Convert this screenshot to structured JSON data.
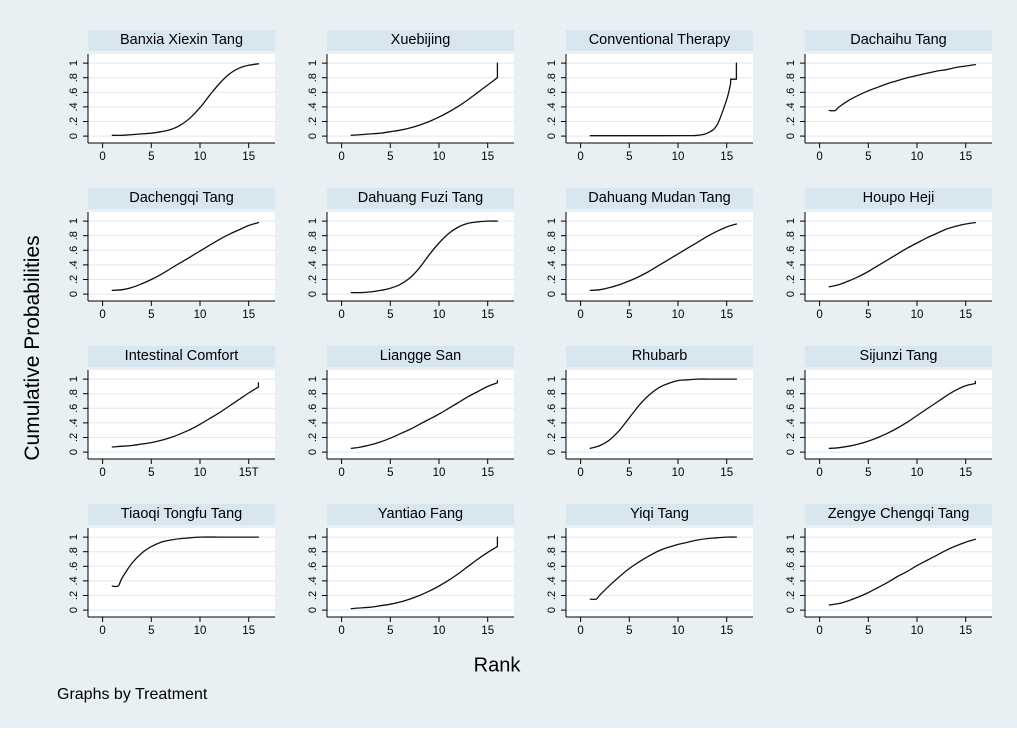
{
  "figure": {
    "ylabel": "Cumulative Probabilities",
    "xlabel": "Rank",
    "footnote": "Graphs by Treatment"
  },
  "colors": {
    "background": "#e8f0f4",
    "title_band": "#d8e6ef",
    "plot_background": "#ffffff",
    "gridline": "#dfe9f1",
    "axis": "#000000",
    "curve": "#111111"
  },
  "axes": {
    "y_tick_labels": [
      "0",
      ".2",
      ".4",
      ".6",
      ".8",
      "1"
    ],
    "y_tick_values": [
      0,
      0.2,
      0.4,
      0.6,
      0.8,
      1
    ],
    "x_tick_labels_default": [
      "0",
      "5",
      "10",
      "15"
    ],
    "x_tick_values": [
      0,
      5,
      10,
      15
    ],
    "x_range": [
      -1.5,
      17.7
    ],
    "y_range": [
      -0.095,
      1.125
    ],
    "grid": "horizontal only"
  },
  "chart_data": {
    "type": "line",
    "layout": "4x4 small multiples (Stata graph by Treatment)",
    "x_variable": "Rank (1-16)",
    "y_variable": "Cumulative probability",
    "panels": [
      {
        "title": "Banxia Xiexin Tang",
        "points": [
          [
            1,
            0.01
          ],
          [
            2,
            0.01
          ],
          [
            3,
            0.02
          ],
          [
            4,
            0.03
          ],
          [
            5,
            0.04
          ],
          [
            6,
            0.06
          ],
          [
            7,
            0.09
          ],
          [
            8,
            0.15
          ],
          [
            9,
            0.25
          ],
          [
            10,
            0.39
          ],
          [
            11,
            0.56
          ],
          [
            12,
            0.72
          ],
          [
            13,
            0.85
          ],
          [
            14,
            0.93
          ],
          [
            15,
            0.97
          ],
          [
            16,
            0.99
          ]
        ]
      },
      {
        "title": "Xuebijing",
        "points": [
          [
            1,
            0.01
          ],
          [
            2,
            0.02
          ],
          [
            3,
            0.03
          ],
          [
            4,
            0.04
          ],
          [
            5,
            0.06
          ],
          [
            6,
            0.08
          ],
          [
            7,
            0.11
          ],
          [
            8,
            0.15
          ],
          [
            9,
            0.2
          ],
          [
            10,
            0.26
          ],
          [
            11,
            0.33
          ],
          [
            12,
            0.41
          ],
          [
            13,
            0.5
          ],
          [
            14,
            0.6
          ],
          [
            15,
            0.7
          ],
          [
            16,
            0.8
          ],
          [
            16,
            1
          ]
        ]
      },
      {
        "title": "Conventional Therapy",
        "points": [
          [
            1,
            0.005
          ],
          [
            4,
            0.005
          ],
          [
            8,
            0.005
          ],
          [
            11,
            0.006
          ],
          [
            12,
            0.01
          ],
          [
            13,
            0.04
          ],
          [
            14,
            0.15
          ],
          [
            15,
            0.5
          ],
          [
            15.4,
            0.72
          ],
          [
            15.4,
            0.78
          ],
          [
            16,
            0.78
          ],
          [
            16,
            1
          ]
        ]
      },
      {
        "title": "Dachaihu Tang",
        "points": [
          [
            1,
            0.35
          ],
          [
            1.6,
            0.35
          ],
          [
            2,
            0.4
          ],
          [
            3,
            0.49
          ],
          [
            4,
            0.56
          ],
          [
            5,
            0.62
          ],
          [
            6,
            0.67
          ],
          [
            7,
            0.72
          ],
          [
            8,
            0.76
          ],
          [
            9,
            0.8
          ],
          [
            10,
            0.83
          ],
          [
            11,
            0.86
          ],
          [
            12,
            0.89
          ],
          [
            13,
            0.91
          ],
          [
            14,
            0.94
          ],
          [
            15,
            0.96
          ],
          [
            16,
            0.98
          ]
        ]
      },
      {
        "title": "Dachengqi Tang",
        "points": [
          [
            1,
            0.05
          ],
          [
            2,
            0.06
          ],
          [
            3,
            0.09
          ],
          [
            4,
            0.14
          ],
          [
            5,
            0.2
          ],
          [
            6,
            0.27
          ],
          [
            7,
            0.35
          ],
          [
            8,
            0.43
          ],
          [
            9,
            0.51
          ],
          [
            10,
            0.59
          ],
          [
            11,
            0.67
          ],
          [
            12,
            0.75
          ],
          [
            13,
            0.82
          ],
          [
            14,
            0.88
          ],
          [
            15,
            0.94
          ],
          [
            16,
            0.98
          ]
        ]
      },
      {
        "title": "Dahuang Fuzi Tang",
        "points": [
          [
            1,
            0.02
          ],
          [
            2,
            0.02
          ],
          [
            3,
            0.03
          ],
          [
            4,
            0.05
          ],
          [
            5,
            0.08
          ],
          [
            6,
            0.13
          ],
          [
            7,
            0.22
          ],
          [
            8,
            0.36
          ],
          [
            9,
            0.54
          ],
          [
            10,
            0.7
          ],
          [
            11,
            0.83
          ],
          [
            12,
            0.92
          ],
          [
            13,
            0.97
          ],
          [
            14,
            0.99
          ],
          [
            15,
            1
          ],
          [
            16,
            1
          ]
        ]
      },
      {
        "title": "Dahuang Mudan Tang",
        "points": [
          [
            1,
            0.05
          ],
          [
            2,
            0.06
          ],
          [
            3,
            0.09
          ],
          [
            4,
            0.13
          ],
          [
            5,
            0.18
          ],
          [
            6,
            0.24
          ],
          [
            7,
            0.31
          ],
          [
            8,
            0.39
          ],
          [
            9,
            0.47
          ],
          [
            10,
            0.55
          ],
          [
            11,
            0.63
          ],
          [
            12,
            0.71
          ],
          [
            13,
            0.79
          ],
          [
            14,
            0.86
          ],
          [
            15,
            0.92
          ],
          [
            16,
            0.96
          ]
        ]
      },
      {
        "title": "Houpo Heji",
        "points": [
          [
            1,
            0.1
          ],
          [
            2,
            0.13
          ],
          [
            3,
            0.18
          ],
          [
            4,
            0.24
          ],
          [
            5,
            0.31
          ],
          [
            6,
            0.39
          ],
          [
            7,
            0.47
          ],
          [
            8,
            0.55
          ],
          [
            9,
            0.63
          ],
          [
            10,
            0.7
          ],
          [
            11,
            0.77
          ],
          [
            12,
            0.83
          ],
          [
            13,
            0.89
          ],
          [
            14,
            0.93
          ],
          [
            15,
            0.96
          ],
          [
            16,
            0.98
          ]
        ]
      },
      {
        "title": "Intestinal Comfort",
        "x_tick_labels": [
          "0",
          "5",
          "10",
          "15T"
        ],
        "points": [
          [
            1,
            0.07
          ],
          [
            2,
            0.08
          ],
          [
            3,
            0.09
          ],
          [
            4,
            0.11
          ],
          [
            5,
            0.13
          ],
          [
            6,
            0.16
          ],
          [
            7,
            0.2
          ],
          [
            8,
            0.25
          ],
          [
            9,
            0.31
          ],
          [
            10,
            0.38
          ],
          [
            11,
            0.46
          ],
          [
            12,
            0.54
          ],
          [
            13,
            0.63
          ],
          [
            14,
            0.72
          ],
          [
            15,
            0.81
          ],
          [
            16,
            0.89
          ],
          [
            16,
            0.95
          ]
        ]
      },
      {
        "title": "Liangge San",
        "points": [
          [
            1,
            0.05
          ],
          [
            2,
            0.07
          ],
          [
            3,
            0.1
          ],
          [
            4,
            0.14
          ],
          [
            5,
            0.19
          ],
          [
            6,
            0.25
          ],
          [
            7,
            0.31
          ],
          [
            8,
            0.38
          ],
          [
            9,
            0.45
          ],
          [
            10,
            0.52
          ],
          [
            11,
            0.6
          ],
          [
            12,
            0.68
          ],
          [
            13,
            0.76
          ],
          [
            14,
            0.83
          ],
          [
            15,
            0.9
          ],
          [
            16,
            0.95
          ],
          [
            16,
            0.98
          ]
        ]
      },
      {
        "title": "Rhubarb",
        "points": [
          [
            1,
            0.05
          ],
          [
            2,
            0.09
          ],
          [
            3,
            0.17
          ],
          [
            4,
            0.3
          ],
          [
            5,
            0.47
          ],
          [
            6,
            0.64
          ],
          [
            7,
            0.78
          ],
          [
            8,
            0.88
          ],
          [
            9,
            0.94
          ],
          [
            10,
            0.98
          ],
          [
            11,
            0.99
          ],
          [
            12,
            1
          ],
          [
            13,
            1
          ],
          [
            14,
            1
          ],
          [
            15,
            1
          ],
          [
            16,
            1
          ]
        ]
      },
      {
        "title": "Sijunzi Tang",
        "points": [
          [
            1,
            0.05
          ],
          [
            2,
            0.06
          ],
          [
            3,
            0.08
          ],
          [
            4,
            0.11
          ],
          [
            5,
            0.15
          ],
          [
            6,
            0.2
          ],
          [
            7,
            0.26
          ],
          [
            8,
            0.33
          ],
          [
            9,
            0.41
          ],
          [
            10,
            0.5
          ],
          [
            11,
            0.59
          ],
          [
            12,
            0.68
          ],
          [
            13,
            0.77
          ],
          [
            14,
            0.85
          ],
          [
            15,
            0.91
          ],
          [
            16,
            0.94
          ],
          [
            16,
            0.97
          ]
        ]
      },
      {
        "title": "Tiaoqi Tongfu Tang",
        "points": [
          [
            1,
            0.33
          ],
          [
            1.6,
            0.33
          ],
          [
            2,
            0.44
          ],
          [
            3,
            0.64
          ],
          [
            4,
            0.78
          ],
          [
            5,
            0.87
          ],
          [
            6,
            0.93
          ],
          [
            7,
            0.96
          ],
          [
            8,
            0.98
          ],
          [
            9,
            0.99
          ],
          [
            10,
            1
          ],
          [
            12,
            1
          ],
          [
            14,
            1
          ],
          [
            16,
            1
          ]
        ]
      },
      {
        "title": "Yantiao Fang",
        "points": [
          [
            1,
            0.02
          ],
          [
            2,
            0.03
          ],
          [
            3,
            0.04
          ],
          [
            4,
            0.06
          ],
          [
            5,
            0.08
          ],
          [
            6,
            0.11
          ],
          [
            7,
            0.15
          ],
          [
            8,
            0.2
          ],
          [
            9,
            0.26
          ],
          [
            10,
            0.33
          ],
          [
            11,
            0.41
          ],
          [
            12,
            0.5
          ],
          [
            13,
            0.6
          ],
          [
            14,
            0.7
          ],
          [
            15,
            0.79
          ],
          [
            16,
            0.87
          ],
          [
            16,
            1
          ]
        ]
      },
      {
        "title": "Yiqi Tang",
        "points": [
          [
            1,
            0.15
          ],
          [
            1.6,
            0.15
          ],
          [
            2,
            0.21
          ],
          [
            3,
            0.34
          ],
          [
            4,
            0.46
          ],
          [
            5,
            0.57
          ],
          [
            6,
            0.66
          ],
          [
            7,
            0.74
          ],
          [
            8,
            0.81
          ],
          [
            9,
            0.86
          ],
          [
            10,
            0.9
          ],
          [
            11,
            0.93
          ],
          [
            12,
            0.96
          ],
          [
            13,
            0.98
          ],
          [
            14,
            0.99
          ],
          [
            15,
            1
          ],
          [
            16,
            1
          ]
        ]
      },
      {
        "title": "Zengye Chengqi Tang",
        "points": [
          [
            1,
            0.07
          ],
          [
            2,
            0.09
          ],
          [
            3,
            0.13
          ],
          [
            4,
            0.18
          ],
          [
            5,
            0.24
          ],
          [
            6,
            0.31
          ],
          [
            7,
            0.38
          ],
          [
            8,
            0.46
          ],
          [
            9,
            0.53
          ],
          [
            10,
            0.61
          ],
          [
            11,
            0.68
          ],
          [
            12,
            0.75
          ],
          [
            13,
            0.82
          ],
          [
            14,
            0.88
          ],
          [
            15,
            0.93
          ],
          [
            16,
            0.97
          ]
        ]
      }
    ]
  }
}
